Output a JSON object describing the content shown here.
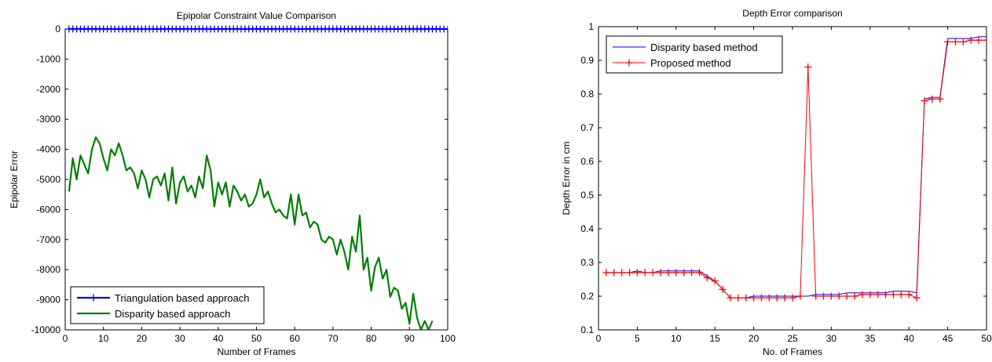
{
  "chart_data": [
    {
      "type": "line",
      "title": "Epipolar Constraint Value Comparison",
      "xlabel": "Number of Frames",
      "ylabel": "Epipolar Error",
      "xlim": [
        0,
        100
      ],
      "ylim": [
        -10000,
        0
      ],
      "xticks": [
        "0",
        "10",
        "20",
        "30",
        "40",
        "50",
        "60",
        "70",
        "80",
        "90",
        "100"
      ],
      "yticks": [
        "0",
        "-1000",
        "-2000",
        "-3000",
        "-4000",
        "-5000",
        "-6000",
        "-7000",
        "-8000",
        "-9000",
        "-10000"
      ],
      "grid": false,
      "legend_position": "bottom-left",
      "series": [
        {
          "name": "Triangulation based approach",
          "color": "#0000ff",
          "marker": "+",
          "x": [
            1,
            2,
            3,
            4,
            5,
            6,
            7,
            8,
            9,
            10,
            11,
            12,
            13,
            14,
            15,
            16,
            17,
            18,
            19,
            20,
            21,
            22,
            23,
            24,
            25,
            26,
            27,
            28,
            29,
            30,
            31,
            32,
            33,
            34,
            35,
            36,
            37,
            38,
            39,
            40,
            41,
            42,
            43,
            44,
            45,
            46,
            47,
            48,
            49,
            50,
            51,
            52,
            53,
            54,
            55,
            56,
            57,
            58,
            59,
            60,
            61,
            62,
            63,
            64,
            65,
            66,
            67,
            68,
            69,
            70,
            71,
            72,
            73,
            74,
            75,
            76,
            77,
            78,
            79,
            80,
            81,
            82,
            83,
            84,
            85,
            86,
            87,
            88,
            89,
            90,
            91,
            92,
            93,
            94,
            95,
            96,
            97,
            98,
            99,
            100
          ],
          "y": [
            0,
            0,
            0,
            0,
            0,
            0,
            0,
            0,
            0,
            0,
            0,
            0,
            0,
            0,
            0,
            0,
            0,
            0,
            0,
            0,
            0,
            0,
            0,
            0,
            0,
            0,
            0,
            0,
            0,
            0,
            0,
            0,
            0,
            0,
            0,
            0,
            0,
            0,
            0,
            0,
            0,
            0,
            0,
            0,
            0,
            0,
            0,
            0,
            0,
            0,
            0,
            0,
            0,
            0,
            0,
            0,
            0,
            0,
            0,
            0,
            0,
            0,
            0,
            0,
            0,
            0,
            0,
            0,
            0,
            0,
            0,
            0,
            0,
            0,
            0,
            0,
            0,
            0,
            0,
            0,
            0,
            0,
            0,
            0,
            0,
            0,
            0,
            0,
            0,
            0,
            0,
            0,
            0,
            0,
            0,
            0,
            0,
            0,
            0,
            0
          ]
        },
        {
          "name": "Disparity based approach",
          "color": "#008000",
          "marker": "none",
          "x": [
            1,
            2,
            3,
            4,
            5,
            6,
            7,
            8,
            9,
            10,
            11,
            12,
            13,
            14,
            15,
            16,
            17,
            18,
            19,
            20,
            21,
            22,
            23,
            24,
            25,
            26,
            27,
            28,
            29,
            30,
            31,
            32,
            33,
            34,
            35,
            36,
            37,
            38,
            39,
            40,
            41,
            42,
            43,
            44,
            45,
            46,
            47,
            48,
            49,
            50,
            51,
            52,
            53,
            54,
            55,
            56,
            57,
            58,
            59,
            60,
            61,
            62,
            63,
            64,
            65,
            66,
            67,
            68,
            69,
            70,
            71,
            72,
            73,
            74,
            75,
            76,
            77,
            78,
            79,
            80,
            81,
            82,
            83,
            84,
            85,
            86,
            87,
            88,
            89,
            90,
            91,
            92,
            93,
            94,
            95,
            96
          ],
          "y": [
            -5400,
            -4300,
            -5000,
            -4200,
            -4500,
            -4800,
            -4000,
            -3600,
            -3800,
            -4300,
            -4700,
            -4000,
            -4200,
            -3800,
            -4200,
            -4700,
            -4600,
            -4800,
            -5300,
            -4700,
            -5000,
            -5600,
            -5000,
            -4900,
            -5200,
            -4800,
            -5700,
            -4600,
            -5800,
            -5100,
            -4900,
            -5400,
            -5200,
            -5600,
            -4900,
            -5300,
            -4200,
            -4700,
            -5900,
            -5100,
            -5500,
            -5100,
            -5900,
            -5200,
            -5400,
            -5700,
            -5500,
            -5900,
            -5800,
            -5500,
            -5000,
            -5600,
            -5400,
            -5800,
            -6100,
            -6000,
            -6200,
            -6300,
            -5500,
            -6500,
            -5500,
            -6200,
            -6100,
            -6600,
            -6400,
            -6500,
            -7000,
            -7100,
            -6900,
            -7000,
            -7500,
            -7000,
            -7400,
            -8000,
            -6900,
            -7400,
            -6200,
            -8000,
            -7600,
            -8700,
            -7900,
            -7600,
            -8300,
            -8000,
            -8900,
            -8600,
            -8700,
            -9300,
            -9100,
            -9800,
            -8800,
            -9600,
            -10000,
            -9700,
            -10000,
            -9700
          ]
        }
      ]
    },
    {
      "type": "line",
      "title": "Depth Error comparison",
      "xlabel": "No. of Frames",
      "ylabel": "Depth Error in cm",
      "xlim": [
        0,
        50
      ],
      "ylim": [
        0.1,
        1
      ],
      "xticks": [
        "0",
        "5",
        "10",
        "15",
        "20",
        "25",
        "30",
        "35",
        "40",
        "45",
        "50"
      ],
      "yticks": [
        "0.1",
        "0.2",
        "0.3",
        "0.4",
        "0.5",
        "0.6",
        "0.7",
        "0.8",
        "0.9",
        "1"
      ],
      "grid": false,
      "legend_position": "top-left",
      "series": [
        {
          "name": "Disparity based method",
          "color": "#0000ff",
          "marker": "none",
          "x": [
            1,
            2,
            3,
            4,
            5,
            6,
            7,
            8,
            9,
            10,
            11,
            12,
            13,
            14,
            15,
            16,
            17,
            18,
            19,
            20,
            21,
            22,
            23,
            24,
            25,
            26,
            27,
            28,
            29,
            30,
            31,
            32,
            33,
            34,
            35,
            36,
            37,
            38,
            39,
            40,
            41,
            42,
            43,
            44,
            45,
            46,
            47,
            48,
            49,
            50
          ],
          "y": [
            0.27,
            0.27,
            0.27,
            0.27,
            0.275,
            0.27,
            0.27,
            0.275,
            0.275,
            0.275,
            0.275,
            0.275,
            0.275,
            0.26,
            0.245,
            0.22,
            0.195,
            0.195,
            0.195,
            0.2,
            0.2,
            0.2,
            0.2,
            0.2,
            0.2,
            0.2,
            0.2,
            0.205,
            0.205,
            0.205,
            0.205,
            0.21,
            0.21,
            0.21,
            0.21,
            0.21,
            0.21,
            0.215,
            0.215,
            0.215,
            0.21,
            0.785,
            0.79,
            0.79,
            0.965,
            0.965,
            0.965,
            0.965,
            0.97,
            0.97
          ]
        },
        {
          "name": "Proposed method",
          "color": "#ff0000",
          "marker": "+",
          "x": [
            1,
            2,
            3,
            4,
            5,
            6,
            7,
            8,
            9,
            10,
            11,
            12,
            13,
            14,
            15,
            16,
            17,
            18,
            19,
            20,
            21,
            22,
            23,
            24,
            25,
            26,
            27,
            28,
            29,
            30,
            31,
            32,
            33,
            34,
            35,
            36,
            37,
            38,
            39,
            40,
            41,
            42,
            43,
            44,
            45,
            46,
            47,
            48,
            49,
            50
          ],
          "y": [
            0.27,
            0.27,
            0.27,
            0.27,
            0.27,
            0.27,
            0.27,
            0.27,
            0.27,
            0.27,
            0.27,
            0.27,
            0.27,
            0.255,
            0.245,
            0.22,
            0.195,
            0.195,
            0.195,
            0.195,
            0.195,
            0.195,
            0.195,
            0.195,
            0.195,
            0.2,
            0.88,
            0.2,
            0.2,
            0.2,
            0.2,
            0.2,
            0.2,
            0.205,
            0.205,
            0.205,
            0.205,
            0.205,
            0.205,
            0.205,
            0.195,
            0.78,
            0.785,
            0.785,
            0.955,
            0.955,
            0.955,
            0.96,
            0.96,
            0.96
          ]
        }
      ]
    }
  ]
}
